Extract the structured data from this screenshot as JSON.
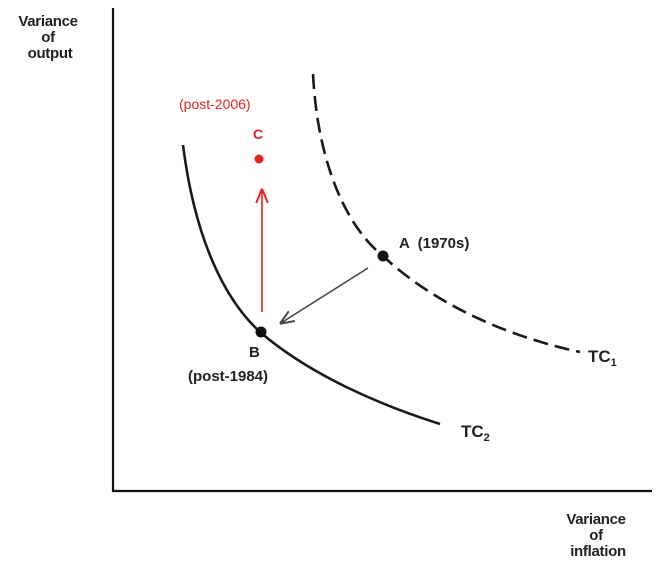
{
  "axes": {
    "y_label_line1": "Variance",
    "y_label_line2": "of",
    "y_label_line3": "output",
    "x_label_line1": "Variance",
    "x_label_line2": "of",
    "x_label_line3": "inflation"
  },
  "points": {
    "a_label": "A  (1970s)",
    "b_label": "B",
    "b_sublabel": "(post-1984)",
    "c_label": "C",
    "c_sublabel": "(post-2006)"
  },
  "curves": {
    "tc1_base": "TC",
    "tc1_sub": "1",
    "tc2_base": "TC",
    "tc2_sub": "2"
  },
  "colors": {
    "axis": "#111111",
    "curve": "#1a1a1a",
    "arrow_gray": "#444444",
    "highlight_red": "#e8231f"
  }
}
